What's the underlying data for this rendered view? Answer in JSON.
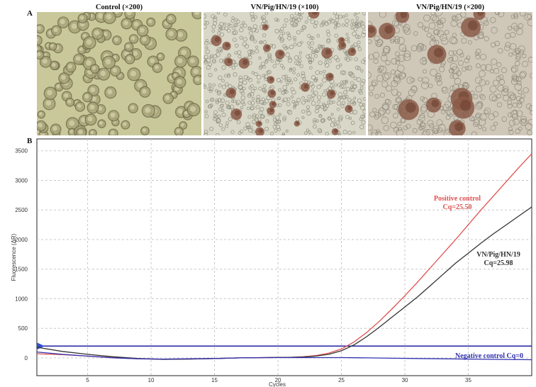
{
  "panel_a": {
    "letter": "A",
    "images": [
      {
        "caption": "Control (×200)",
        "subject": "uninfected cell culture",
        "tone": "#c8c89a"
      },
      {
        "caption": "VN/Pig/HN/19 (×100)",
        "subject": "infected cell culture showing clustered cells",
        "tone": "#d9d8c8"
      },
      {
        "caption": "VN/Pig/HN/19 (×200)",
        "subject": "infected cell culture showing large cell clusters",
        "tone": "#cfc7b8"
      }
    ]
  },
  "panel_b": {
    "letter": "B"
  },
  "chart_data": {
    "type": "line",
    "xlabel": "Cycles",
    "ylabel": "Fluorescence (ΔR)",
    "xlim": [
      1,
      40
    ],
    "ylim": [
      -300,
      3700
    ],
    "xticks": [
      5,
      10,
      15,
      20,
      25,
      30,
      35
    ],
    "yticks": [
      0,
      500,
      1000,
      1500,
      2000,
      2500,
      3000,
      3500
    ],
    "grid": true,
    "threshold": 200,
    "series": [
      {
        "color": "#e05050",
        "label_lines": [
          "Positive control",
          "Cq=25.50"
        ],
        "x": [
          1,
          3,
          5,
          7,
          9,
          11,
          13,
          15,
          17,
          19,
          21,
          22,
          23,
          24,
          25,
          26,
          27,
          28,
          29,
          30,
          31,
          32,
          33,
          34,
          35,
          36,
          37,
          38,
          39,
          40
        ],
        "y": [
          70,
          55,
          30,
          5,
          -15,
          -25,
          -20,
          -10,
          0,
          5,
          10,
          20,
          40,
          80,
          150,
          270,
          430,
          620,
          830,
          1050,
          1280,
          1520,
          1760,
          2000,
          2250,
          2500,
          2740,
          2980,
          3220,
          3450
        ]
      },
      {
        "color": "#333333",
        "label_lines": [
          "VN/Pig/HN/19",
          "Cq=25.98"
        ],
        "x": [
          1,
          3,
          5,
          7,
          9,
          11,
          13,
          15,
          17,
          19,
          21,
          22,
          23,
          24,
          25,
          26,
          27,
          28,
          29,
          30,
          31,
          32,
          33,
          34,
          35,
          36,
          37,
          38,
          39,
          40
        ],
        "y": [
          180,
          110,
          60,
          20,
          -10,
          -25,
          -20,
          -10,
          0,
          5,
          10,
          15,
          30,
          60,
          120,
          220,
          360,
          520,
          690,
          860,
          1030,
          1220,
          1410,
          1600,
          1770,
          1940,
          2100,
          2250,
          2400,
          2550
        ]
      },
      {
        "color": "#3030b0",
        "label_lines": [
          "Negative control Cq=0"
        ],
        "x": [
          1,
          3,
          5,
          7,
          9,
          11,
          13,
          15,
          17,
          19,
          21,
          23,
          25,
          27,
          29,
          31,
          33,
          35,
          37,
          40
        ],
        "y": [
          100,
          60,
          30,
          0,
          -15,
          -20,
          -15,
          -10,
          0,
          5,
          5,
          5,
          5,
          0,
          -5,
          -10,
          -15,
          -20,
          -25,
          -30
        ]
      }
    ]
  }
}
